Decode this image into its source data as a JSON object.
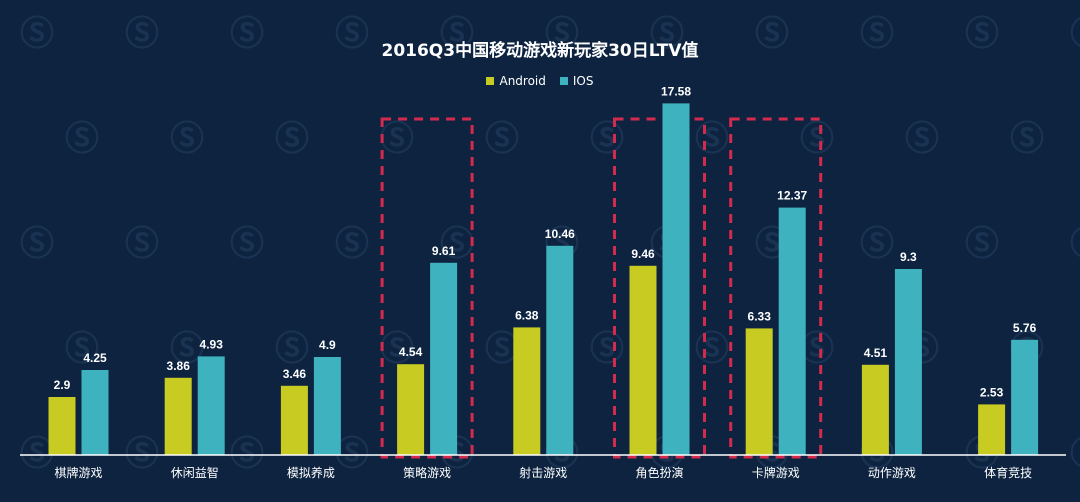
{
  "chart_data": {
    "type": "bar",
    "title": "2016Q3中国移动游戏新玩家30日LTV值",
    "xlabel": "",
    "ylabel": "",
    "ylim": [
      0,
      20
    ],
    "grid": false,
    "legend_position": "top-center",
    "categories": [
      "棋牌游戏",
      "休闲益智",
      "模拟养成",
      "策略游戏",
      "射击游戏",
      "角色扮演",
      "卡牌游戏",
      "动作游戏",
      "体育竞技"
    ],
    "series": [
      {
        "name": "Android",
        "color": "#c8cc22",
        "values": [
          2.9,
          3.86,
          3.46,
          4.54,
          6.38,
          9.46,
          6.33,
          4.51,
          2.53
        ],
        "labels": [
          "2.9",
          "3.86",
          "3.46",
          "4.54",
          "6.38",
          "9.46",
          "6.33",
          "4.51",
          "2.53"
        ]
      },
      {
        "name": "IOS",
        "color": "#3eb3bf",
        "values": [
          4.25,
          4.93,
          4.9,
          9.61,
          10.46,
          17.58,
          12.37,
          9.3,
          5.76
        ],
        "labels": [
          "4.25",
          "4.93",
          "4.9",
          "9.61",
          "10.46",
          "17.58",
          "12.37",
          "9.3",
          "5.76"
        ]
      }
    ],
    "highlighted_categories": [
      "策略游戏",
      "角色扮演",
      "卡牌游戏"
    ],
    "highlight_color": "#d42a4e"
  }
}
